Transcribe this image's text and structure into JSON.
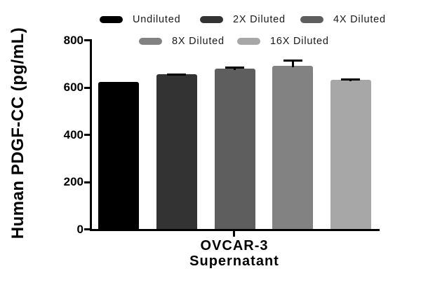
{
  "chart_data": {
    "type": "bar",
    "title": "",
    "ylabel": "Human PDGF-CC (pg/mL)",
    "x_group_label_lines": [
      "OVCAR-3",
      "Supernatant"
    ],
    "ylim": [
      0,
      800
    ],
    "yticks": [
      0,
      200,
      400,
      600,
      800
    ],
    "categories": [
      "Undiluted",
      "2X Diluted",
      "4X Diluted",
      "8X Diluted",
      "16X Diluted"
    ],
    "series": [
      {
        "name": "Undiluted",
        "value": 625,
        "error": 0,
        "color": "#000000"
      },
      {
        "name": "2X Diluted",
        "value": 655,
        "error": 5,
        "color": "#333333"
      },
      {
        "name": "4X Diluted",
        "value": 680,
        "error": 9,
        "color": "#5e5e5e"
      },
      {
        "name": "8X Diluted",
        "value": 693,
        "error": 27,
        "color": "#828282"
      },
      {
        "name": "16X Diluted",
        "value": 632,
        "error": 7,
        "color": "#a7a7a7"
      }
    ],
    "grid": false,
    "legend_position": "top",
    "axis_color": "#000000",
    "text_color": "#000000",
    "legend_text_color": "#1a1a1a",
    "background": "#ffffff"
  }
}
